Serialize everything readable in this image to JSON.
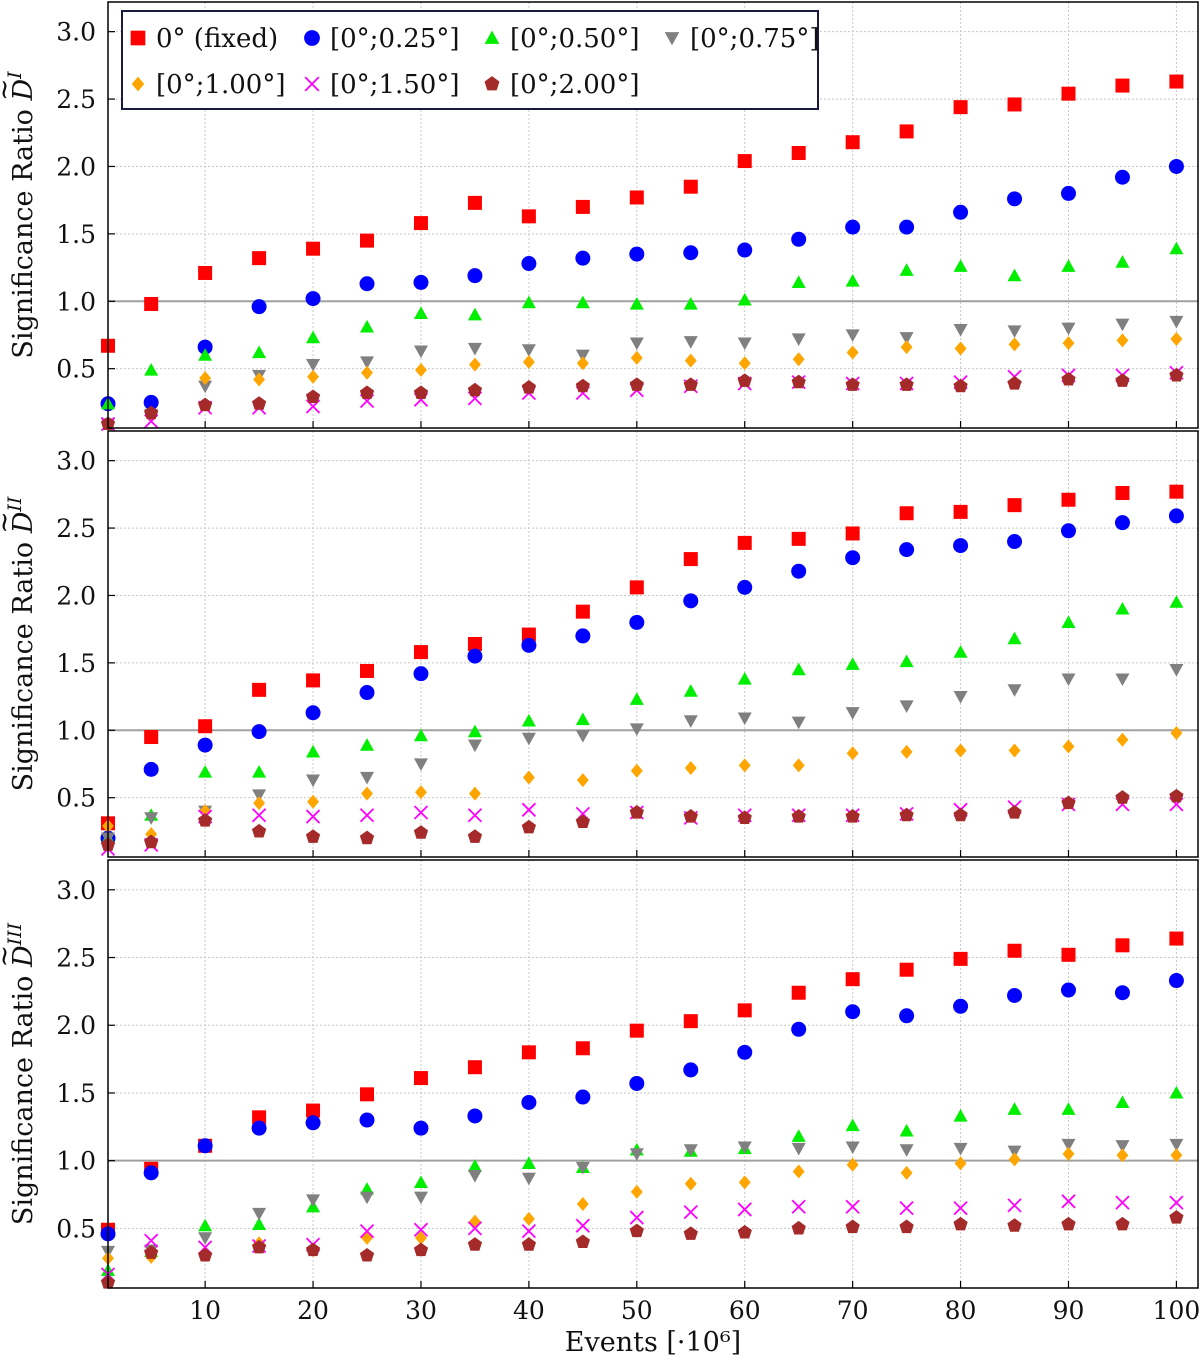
{
  "chart_data": {
    "type": "scatter",
    "xlabel": "Events [·10⁶]",
    "xlim": [
      1,
      102
    ],
    "ylim": [
      0.06,
      3.22
    ],
    "x_ticks": [
      10,
      20,
      30,
      40,
      50,
      60,
      70,
      80,
      90,
      100
    ],
    "y_ticks": [
      0.5,
      1.0,
      1.5,
      2.0,
      2.5,
      3.0
    ],
    "reference_line_y": 1.0,
    "grid": true,
    "legend_position": "top-left",
    "x": [
      1,
      5,
      10,
      15,
      20,
      25,
      30,
      35,
      40,
      45,
      50,
      55,
      60,
      65,
      70,
      75,
      80,
      85,
      90,
      95,
      100
    ],
    "legend": [
      {
        "name": "0° (fixed)",
        "marker": "square",
        "color": "#ff0000"
      },
      {
        "name": "[0°;0.25°]",
        "marker": "circle",
        "color": "#0000ff"
      },
      {
        "name": "[0°;0.50°]",
        "marker": "triangle-up",
        "color": "#00ee00"
      },
      {
        "name": "[0°;0.75°]",
        "marker": "triangle-down",
        "color": "#808080"
      },
      {
        "name": "[0°;1.00°]",
        "marker": "diamond",
        "color": "#ffa500"
      },
      {
        "name": "[0°;1.50°]",
        "marker": "x",
        "color": "#ff00ff"
      },
      {
        "name": "[0°;2.00°]",
        "marker": "pentagon",
        "color": "#a52a2a"
      }
    ],
    "panels": [
      {
        "ylabel_prefix": "Significance Ratio ",
        "ylabel_symbol": "D",
        "ylabel_superscript": "I",
        "series": [
          {
            "name": "0° (fixed)",
            "values": [
              0.67,
              0.98,
              1.21,
              1.32,
              1.39,
              1.45,
              1.58,
              1.73,
              1.63,
              1.7,
              1.77,
              1.85,
              2.04,
              2.1,
              2.18,
              2.26,
              2.44,
              2.46,
              2.54,
              2.6,
              2.63
            ]
          },
          {
            "name": "[0°;0.25°]",
            "values": [
              0.24,
              0.25,
              0.66,
              0.96,
              1.02,
              1.13,
              1.14,
              1.19,
              1.28,
              1.32,
              1.35,
              1.36,
              1.38,
              1.46,
              1.55,
              1.55,
              1.66,
              1.76,
              1.8,
              1.92,
              2.0
            ]
          },
          {
            "name": "[0°;0.50°]",
            "values": [
              0.24,
              0.49,
              0.6,
              0.62,
              0.73,
              0.81,
              0.91,
              0.9,
              0.99,
              0.99,
              0.98,
              0.98,
              1.01,
              1.14,
              1.15,
              1.23,
              1.26,
              1.19,
              1.26,
              1.29,
              1.39
            ]
          },
          {
            "name": "[0°;0.75°]",
            "values": [
              0.09,
              0.16,
              0.37,
              0.45,
              0.53,
              0.55,
              0.63,
              0.65,
              0.64,
              0.6,
              0.69,
              0.7,
              0.69,
              0.72,
              0.75,
              0.73,
              0.79,
              0.78,
              0.8,
              0.83,
              0.85
            ]
          },
          {
            "name": "[0°;1.00°]",
            "values": [
              0.09,
              0.17,
              0.43,
              0.42,
              0.44,
              0.47,
              0.49,
              0.53,
              0.55,
              0.54,
              0.58,
              0.56,
              0.54,
              0.57,
              0.62,
              0.66,
              0.65,
              0.68,
              0.69,
              0.71,
              0.72
            ]
          },
          {
            "name": "[0°;1.50°]",
            "values": [
              0.09,
              0.11,
              0.21,
              0.21,
              0.22,
              0.26,
              0.27,
              0.28,
              0.32,
              0.32,
              0.34,
              0.37,
              0.39,
              0.4,
              0.39,
              0.39,
              0.4,
              0.44,
              0.45,
              0.45,
              0.47
            ]
          },
          {
            "name": "[0°;2.00°]",
            "values": [
              0.09,
              0.17,
              0.23,
              0.24,
              0.29,
              0.32,
              0.32,
              0.34,
              0.36,
              0.37,
              0.38,
              0.38,
              0.41,
              0.4,
              0.38,
              0.38,
              0.37,
              0.39,
              0.42,
              0.41,
              0.45
            ]
          }
        ]
      },
      {
        "ylabel_prefix": "Significance Ratio ",
        "ylabel_symbol": "D",
        "ylabel_superscript": "II",
        "series": [
          {
            "name": "0° (fixed)",
            "values": [
              0.31,
              0.95,
              1.03,
              1.3,
              1.37,
              1.44,
              1.58,
              1.64,
              1.71,
              1.88,
              2.06,
              2.27,
              2.39,
              2.42,
              2.46,
              2.61,
              2.62,
              2.67,
              2.71,
              2.76,
              2.77
            ]
          },
          {
            "name": "[0°;0.25°]",
            "values": [
              0.2,
              0.71,
              0.89,
              0.99,
              1.13,
              1.28,
              1.42,
              1.55,
              1.63,
              1.7,
              1.8,
              1.96,
              2.06,
              2.18,
              2.28,
              2.34,
              2.37,
              2.4,
              2.48,
              2.54,
              2.59
            ]
          },
          {
            "name": "[0°;0.50°]",
            "values": [
              0.2,
              0.37,
              0.69,
              0.69,
              0.84,
              0.89,
              0.96,
              0.99,
              1.07,
              1.08,
              1.23,
              1.29,
              1.38,
              1.45,
              1.49,
              1.51,
              1.58,
              1.68,
              1.8,
              1.9,
              1.95
            ]
          },
          {
            "name": "[0°;0.75°]",
            "values": [
              0.2,
              0.35,
              0.4,
              0.52,
              0.63,
              0.65,
              0.75,
              0.89,
              0.94,
              0.96,
              1.01,
              1.07,
              1.09,
              1.06,
              1.13,
              1.18,
              1.25,
              1.3,
              1.38,
              1.38,
              1.45
            ]
          },
          {
            "name": "[0°;1.00°]",
            "values": [
              0.29,
              0.23,
              0.4,
              0.46,
              0.47,
              0.53,
              0.54,
              0.53,
              0.65,
              0.63,
              0.7,
              0.72,
              0.74,
              0.74,
              0.83,
              0.84,
              0.85,
              0.85,
              0.88,
              0.93,
              0.98
            ]
          },
          {
            "name": "[0°;1.50°]",
            "values": [
              0.12,
              0.15,
              0.36,
              0.37,
              0.36,
              0.37,
              0.39,
              0.37,
              0.41,
              0.38,
              0.39,
              0.35,
              0.37,
              0.37,
              0.37,
              0.38,
              0.41,
              0.43,
              0.45,
              0.45,
              0.45
            ]
          },
          {
            "name": "[0°;2.00°]",
            "values": [
              0.15,
              0.17,
              0.33,
              0.25,
              0.21,
              0.2,
              0.24,
              0.21,
              0.28,
              0.32,
              0.39,
              0.36,
              0.35,
              0.36,
              0.36,
              0.37,
              0.37,
              0.39,
              0.46,
              0.5,
              0.51
            ]
          }
        ]
      },
      {
        "ylabel_prefix": "Significance Ratio ",
        "ylabel_symbol": "D",
        "ylabel_superscript": "III",
        "series": [
          {
            "name": "0° (fixed)",
            "values": [
              0.49,
              0.94,
              1.11,
              1.32,
              1.37,
              1.49,
              1.61,
              1.69,
              1.8,
              1.83,
              1.96,
              2.03,
              2.11,
              2.24,
              2.34,
              2.41,
              2.49,
              2.55,
              2.52,
              2.59,
              2.64
            ]
          },
          {
            "name": "[0°;0.25°]",
            "values": [
              0.46,
              0.91,
              1.11,
              1.24,
              1.28,
              1.3,
              1.24,
              1.33,
              1.43,
              1.47,
              1.57,
              1.67,
              1.8,
              1.97,
              2.1,
              2.07,
              2.14,
              2.22,
              2.26,
              2.24,
              2.33
            ]
          },
          {
            "name": "[0°;0.50°]",
            "values": [
              0.19,
              0.33,
              0.52,
              0.53,
              0.66,
              0.79,
              0.84,
              0.96,
              0.98,
              0.95,
              1.08,
              1.07,
              1.09,
              1.18,
              1.26,
              1.22,
              1.33,
              1.38,
              1.38,
              1.43,
              1.5
            ]
          },
          {
            "name": "[0°;0.75°]",
            "values": [
              0.33,
              0.34,
              0.43,
              0.61,
              0.71,
              0.73,
              0.73,
              0.89,
              0.87,
              0.95,
              1.05,
              1.08,
              1.1,
              1.09,
              1.1,
              1.08,
              1.09,
              1.07,
              1.12,
              1.11,
              1.12
            ]
          },
          {
            "name": "[0°;1.00°]",
            "values": [
              0.28,
              0.29,
              0.32,
              0.39,
              0.34,
              0.43,
              0.43,
              0.55,
              0.57,
              0.68,
              0.77,
              0.83,
              0.84,
              0.92,
              0.97,
              0.91,
              0.98,
              1.01,
              1.05,
              1.04,
              1.04
            ]
          },
          {
            "name": "[0°;1.50°]",
            "values": [
              0.16,
              0.41,
              0.36,
              0.37,
              0.38,
              0.48,
              0.49,
              0.5,
              0.48,
              0.52,
              0.58,
              0.62,
              0.64,
              0.66,
              0.66,
              0.65,
              0.65,
              0.67,
              0.7,
              0.69,
              0.69
            ]
          },
          {
            "name": "[0°;2.00°]",
            "values": [
              0.1,
              0.32,
              0.3,
              0.36,
              0.34,
              0.3,
              0.34,
              0.38,
              0.38,
              0.4,
              0.48,
              0.46,
              0.47,
              0.5,
              0.51,
              0.51,
              0.53,
              0.52,
              0.53,
              0.53,
              0.58
            ]
          }
        ]
      }
    ]
  }
}
